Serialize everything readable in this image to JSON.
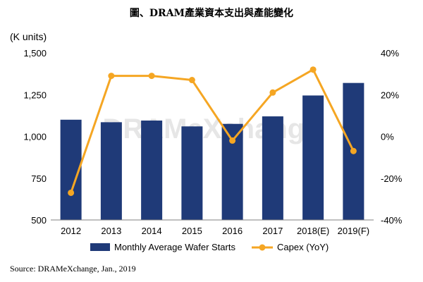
{
  "title": "圖、DRAM產業資本支出與產能變化",
  "unit_label": "(K units)",
  "source": "Source: DRAMeXchange, Jan., 2019",
  "watermark": "DRAMeXchange",
  "colors": {
    "bar": "#1f3a78",
    "line": "#f5a623",
    "axis": "#808080",
    "watermark": "#e6e6e6"
  },
  "chart_data": {
    "type": "bar",
    "categories": [
      "2012",
      "2013",
      "2014",
      "2015",
      "2016",
      "2017",
      "2018(E)",
      "2019(F)"
    ],
    "series": [
      {
        "name": "Monthly Average Wafer Starts",
        "type": "bar",
        "axis": "left",
        "values": [
          1100,
          1085,
          1095,
          1060,
          1075,
          1120,
          1245,
          1320
        ]
      },
      {
        "name": "Capex (YoY)",
        "type": "line",
        "axis": "right",
        "values": [
          -27,
          29,
          29,
          27,
          -2,
          21,
          32,
          -7
        ]
      }
    ],
    "ylim": [
      500,
      1500
    ],
    "yticks": [
      "1,500",
      "1,250",
      "1,000",
      "750",
      "500"
    ],
    "ytick_values": [
      1500,
      1250,
      1000,
      750,
      500
    ],
    "y2lim": [
      -40,
      40
    ],
    "y2ticks": [
      "40%",
      "20%",
      "0%",
      "-20%",
      "-40%"
    ],
    "y2tick_values": [
      40,
      20,
      0,
      -20,
      -40
    ],
    "legend_position": "bottom"
  }
}
